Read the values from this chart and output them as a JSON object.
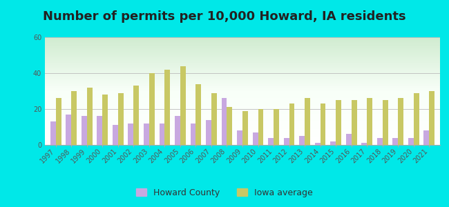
{
  "title": "Number of permits per 10,000 Howard, IA residents",
  "years": [
    1997,
    1998,
    1999,
    2000,
    2001,
    2002,
    2003,
    2004,
    2005,
    2006,
    2007,
    2008,
    2009,
    2010,
    2011,
    2012,
    2013,
    2014,
    2015,
    2016,
    2017,
    2018,
    2019,
    2020,
    2021
  ],
  "howard_county": [
    13,
    17,
    16,
    16,
    11,
    12,
    12,
    12,
    16,
    12,
    14,
    26,
    8,
    7,
    4,
    4,
    5,
    1,
    2,
    6,
    1,
    4,
    4,
    4,
    8
  ],
  "iowa_average": [
    26,
    30,
    32,
    28,
    29,
    33,
    40,
    42,
    44,
    34,
    29,
    21,
    19,
    20,
    20,
    23,
    26,
    23,
    25,
    25,
    26,
    25,
    26,
    29,
    30
  ],
  "howard_color": "#c8a8e0",
  "iowa_color": "#c8c864",
  "bg_outer": "#00e8e8",
  "ylim": [
    0,
    60
  ],
  "yticks": [
    0,
    20,
    40,
    60
  ],
  "title_fontsize": 13,
  "tick_fontsize": 7,
  "legend_fontsize": 9,
  "bar_width": 0.35,
  "grad_top": "#f5fff5",
  "grad_bottom": "#c8e8c8"
}
